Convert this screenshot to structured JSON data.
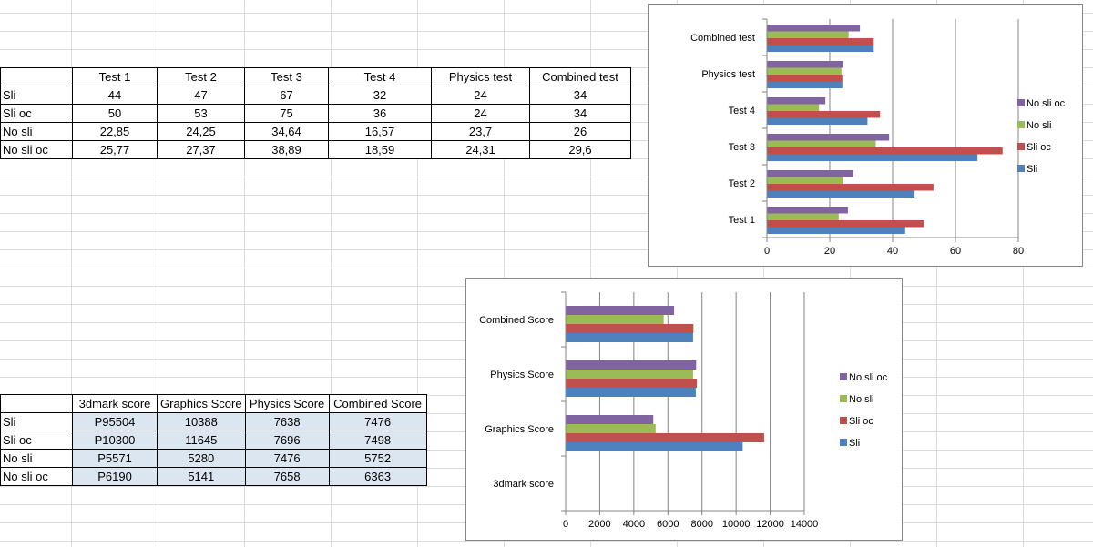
{
  "table1": {
    "headers": [
      "",
      "Test 1",
      "Test 2",
      "Test 3",
      "Test 4",
      "Physics test",
      "Combined test"
    ],
    "rows": [
      [
        "Sli",
        "44",
        "47",
        "67",
        "32",
        "24",
        "34"
      ],
      [
        "Sli oc",
        "50",
        "53",
        "75",
        "36",
        "24",
        "34"
      ],
      [
        "No sli",
        "22,85",
        "24,25",
        "34,64",
        "16,57",
        "23,7",
        "26"
      ],
      [
        "No sli oc",
        "25,77",
        "27,37",
        "38,89",
        "18,59",
        "24,31",
        "29,6"
      ]
    ]
  },
  "table2": {
    "headers": [
      "",
      "3dmark score",
      "Graphics Score",
      "Physics Score",
      "Combined Score"
    ],
    "rows": [
      [
        "Sli",
        "P95504",
        "10388",
        "7638",
        "7476"
      ],
      [
        "Sli oc",
        "P10300",
        "11645",
        "7696",
        "7498"
      ],
      [
        "No sli",
        "P5571",
        "5280",
        "7476",
        "5752"
      ],
      [
        "No sli oc",
        "P6190",
        "5141",
        "7658",
        "6363"
      ]
    ]
  },
  "chart_data": [
    {
      "type": "bar",
      "orientation": "horizontal",
      "categories": [
        "Test 1",
        "Test 2",
        "Test 3",
        "Test 4",
        "Physics test",
        "Combined test"
      ],
      "series": [
        {
          "name": "Sli",
          "color": "#4f81bd",
          "values": [
            44,
            47,
            67,
            32,
            24,
            34
          ]
        },
        {
          "name": "Sli oc",
          "color": "#c0504d",
          "values": [
            50,
            53,
            75,
            36,
            24,
            34
          ]
        },
        {
          "name": "No sli",
          "color": "#9bbb59",
          "values": [
            22.85,
            24.25,
            34.64,
            16.57,
            23.7,
            26
          ]
        },
        {
          "name": "No sli oc",
          "color": "#8064a2",
          "values": [
            25.77,
            27.37,
            38.89,
            18.59,
            24.31,
            29.6
          ]
        }
      ],
      "xlim": [
        0,
        80
      ],
      "ticks": [
        0,
        20,
        40,
        60,
        80
      ],
      "legend_order": [
        "No sli oc",
        "No sli",
        "Sli oc",
        "Sli"
      ],
      "legend": "right",
      "grid": true
    },
    {
      "type": "bar",
      "orientation": "horizontal",
      "categories": [
        "3dmark score",
        "Graphics Score",
        "Physics Score",
        "Combined Score"
      ],
      "series": [
        {
          "name": "Sli",
          "color": "#4f81bd",
          "values": [
            null,
            10388,
            7638,
            7476
          ]
        },
        {
          "name": "Sli oc",
          "color": "#c0504d",
          "values": [
            null,
            11645,
            7696,
            7498
          ]
        },
        {
          "name": "No sli",
          "color": "#9bbb59",
          "values": [
            null,
            5280,
            7476,
            5752
          ]
        },
        {
          "name": "No sli oc",
          "color": "#8064a2",
          "values": [
            null,
            5141,
            7658,
            6363
          ]
        }
      ],
      "xlim": [
        0,
        14000
      ],
      "ticks": [
        0,
        2000,
        4000,
        6000,
        8000,
        10000,
        12000,
        14000
      ],
      "legend_order": [
        "No sli oc",
        "No sli",
        "Sli oc",
        "Sli"
      ],
      "legend": "right",
      "grid": true
    }
  ]
}
